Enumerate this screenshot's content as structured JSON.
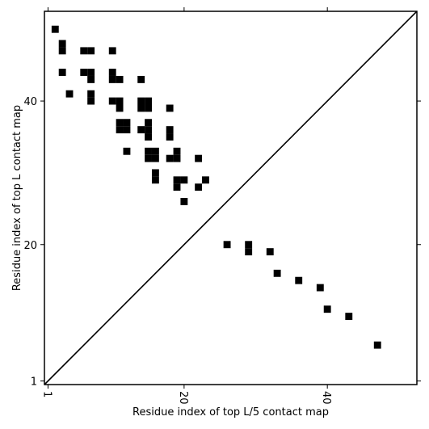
{
  "chart_data": {
    "type": "scatter",
    "title": "",
    "xlabel": "Residue index of top L/5 contact map",
    "ylabel": "Residue index of top L contact map",
    "xlim": [
      0.5,
      52.5
    ],
    "ylim": [
      0.5,
      52.5
    ],
    "xticks": [
      1,
      20,
      40
    ],
    "yticks": [
      1,
      20,
      40
    ],
    "grid": false,
    "diagonal_line": true,
    "marker": "square",
    "color": "#000000",
    "lower_triangle_points": [
      [
        26,
        20
      ],
      [
        29,
        20
      ],
      [
        29,
        19
      ],
      [
        32,
        19
      ],
      [
        33,
        16
      ],
      [
        36,
        15
      ],
      [
        39,
        14
      ],
      [
        40,
        11
      ],
      [
        43,
        10
      ],
      [
        47,
        6
      ]
    ],
    "upper_triangle_points": [
      [
        2,
        50
      ],
      [
        3,
        48
      ],
      [
        3,
        47
      ],
      [
        6,
        47
      ],
      [
        7,
        47
      ],
      [
        10,
        47
      ],
      [
        3,
        44
      ],
      [
        6,
        44
      ],
      [
        7,
        44
      ],
      [
        10,
        44
      ],
      [
        7,
        43
      ],
      [
        10,
        43
      ],
      [
        11,
        43
      ],
      [
        14,
        43
      ],
      [
        4,
        41
      ],
      [
        7,
        41
      ],
      [
        7,
        40
      ],
      [
        10,
        40
      ],
      [
        11,
        40
      ],
      [
        14,
        40
      ],
      [
        15,
        40
      ],
      [
        11,
        39
      ],
      [
        14,
        39
      ],
      [
        15,
        39
      ],
      [
        18,
        39
      ],
      [
        11,
        37
      ],
      [
        12,
        37
      ],
      [
        15,
        37
      ],
      [
        11,
        36
      ],
      [
        12,
        36
      ],
      [
        14,
        36
      ],
      [
        15,
        36
      ],
      [
        18,
        36
      ],
      [
        15,
        35
      ],
      [
        18,
        35
      ],
      [
        12,
        33
      ],
      [
        15,
        33
      ],
      [
        16,
        33
      ],
      [
        19,
        33
      ],
      [
        15,
        32
      ],
      [
        16,
        32
      ],
      [
        18,
        32
      ],
      [
        19,
        32
      ],
      [
        22,
        32
      ],
      [
        16,
        30
      ],
      [
        16,
        29
      ],
      [
        19,
        29
      ],
      [
        20,
        29
      ],
      [
        23,
        29
      ],
      [
        19,
        28
      ],
      [
        22,
        28
      ],
      [
        20,
        26
      ]
    ]
  }
}
